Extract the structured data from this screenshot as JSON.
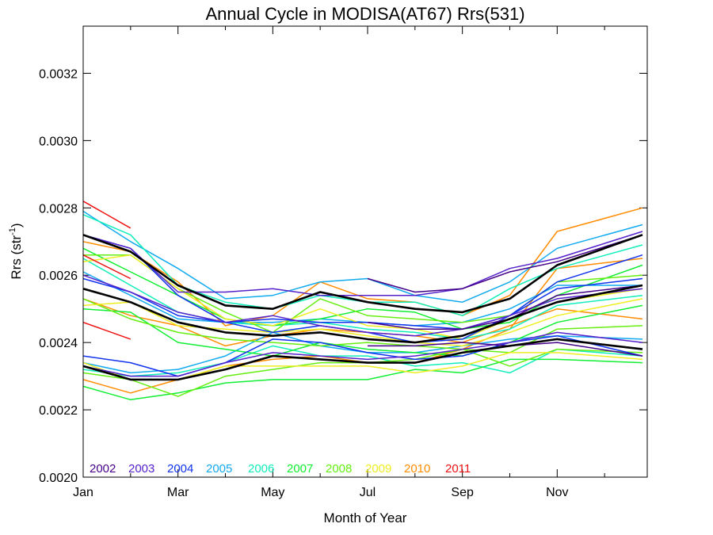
{
  "chart_data": {
    "type": "line",
    "title": "Annual Cycle in MODISA(AT67) Rrs(531)",
    "xlabel": "Month of Year",
    "ylabel_base": "Rrs (str",
    "ylabel_exp": "-1",
    "ylabel_tail": ")",
    "xlim": [
      1,
      12.9
    ],
    "ylim": [
      0.002,
      0.00334
    ],
    "x_ticks": [
      {
        "value": 1,
        "label": "Jan"
      },
      {
        "value": 3,
        "label": "Mar"
      },
      {
        "value": 5,
        "label": "May"
      },
      {
        "value": 7,
        "label": "Jul"
      },
      {
        "value": 9,
        "label": "Sep"
      },
      {
        "value": 11,
        "label": "Nov"
      }
    ],
    "y_ticks": [
      {
        "value": 0.002,
        "label": "0.0020"
      },
      {
        "value": 0.0022,
        "label": "0.0022"
      },
      {
        "value": 0.0024,
        "label": "0.0024"
      },
      {
        "value": 0.0026,
        "label": "0.0026"
      },
      {
        "value": 0.0028,
        "label": "0.0028"
      },
      {
        "value": 0.003,
        "label": "0.0030"
      },
      {
        "value": 0.0032,
        "label": "0.0032"
      }
    ],
    "grid": false,
    "legend": {
      "placement": "bottom-left",
      "entries": [
        {
          "label": "2002",
          "color": "#440088"
        },
        {
          "label": "2003",
          "color": "#5522cc"
        },
        {
          "label": "2004",
          "color": "#1133ee"
        },
        {
          "label": "2005",
          "color": "#11aaee"
        },
        {
          "label": "2006",
          "color": "#11eebb"
        },
        {
          "label": "2007",
          "color": "#11ee33"
        },
        {
          "label": "2008",
          "color": "#66ee11"
        },
        {
          "label": "2009",
          "color": "#eeee22"
        },
        {
          "label": "2010",
          "color": "#ff8c00"
        },
        {
          "label": "2011",
          "color": "#ee1111"
        }
      ]
    },
    "series": [
      {
        "color": "#ff8c00",
        "x": [
          1,
          2,
          3,
          4,
          5,
          6,
          7,
          8,
          9,
          10,
          11,
          12.8
        ],
        "y": [
          0.0027,
          0.00267,
          0.00258,
          0.00245,
          0.00248,
          0.00258,
          0.00253,
          0.00252,
          0.00248,
          0.00254,
          0.00273,
          0.0028
        ]
      },
      {
        "color": "#ff8c00",
        "x": [
          1,
          2,
          3,
          4,
          5,
          6,
          7,
          8,
          9,
          10,
          11,
          12.8
        ],
        "y": [
          0.00253,
          0.00248,
          0.00245,
          0.00239,
          0.00242,
          0.00244,
          0.00243,
          0.00242,
          0.0024,
          0.00245,
          0.0025,
          0.00247
        ]
      },
      {
        "color": "#ff8c00",
        "x": [
          1,
          2,
          3,
          4,
          5,
          6,
          7,
          8,
          9,
          10,
          11,
          12.8
        ],
        "y": [
          0.00229,
          0.00225,
          0.00229,
          0.00233,
          0.00235,
          0.00236,
          0.00234,
          0.00234,
          0.00238,
          0.00244,
          0.00262,
          0.00265
        ]
      },
      {
        "color": "#11aaee",
        "x": [
          1,
          2,
          3,
          4,
          5,
          6,
          7,
          8,
          9,
          10,
          11,
          12.8
        ],
        "y": [
          0.00279,
          0.0027,
          0.00262,
          0.00253,
          0.00254,
          0.00258,
          0.00259,
          0.00254,
          0.00252,
          0.00258,
          0.00268,
          0.00275
        ]
      },
      {
        "color": "#11aaee",
        "x": [
          1,
          2,
          3,
          4,
          5,
          6,
          7,
          8,
          9,
          10,
          11,
          12.8
        ],
        "y": [
          0.00261,
          0.00254,
          0.00247,
          0.00246,
          0.00246,
          0.00247,
          0.00246,
          0.00245,
          0.00246,
          0.0025,
          0.00257,
          0.00257
        ]
      },
      {
        "color": "#11aaee",
        "x": [
          1,
          2,
          3,
          4,
          5,
          6,
          7,
          8,
          9,
          10,
          11,
          12.8
        ],
        "y": [
          0.00234,
          0.00231,
          0.00232,
          0.00236,
          0.00243,
          0.00239,
          0.00237,
          0.00237,
          0.00239,
          0.00241,
          0.00242,
          0.00241
        ]
      },
      {
        "color": "#11eebb",
        "x": [
          1,
          2,
          3,
          4,
          5,
          6,
          7,
          8,
          9,
          10,
          11,
          12.8
        ],
        "y": [
          0.00278,
          0.00272,
          0.00257,
          0.00252,
          0.0025,
          0.00254,
          0.00252,
          0.00252,
          0.00248,
          0.00256,
          0.00262,
          0.00269
        ]
      },
      {
        "color": "#11eebb",
        "x": [
          1,
          2,
          3,
          4,
          5,
          6,
          7,
          8,
          9,
          10,
          11,
          12.8
        ],
        "y": [
          0.00265,
          0.00257,
          0.00249,
          0.00246,
          0.00245,
          0.00246,
          0.00244,
          0.00243,
          0.00241,
          0.00244,
          0.00251,
          0.00254
        ]
      },
      {
        "color": "#11eebb",
        "x": [
          1,
          2,
          3,
          4,
          5,
          6,
          7,
          8,
          9,
          10,
          11,
          12.8
        ],
        "y": [
          0.00232,
          0.0023,
          0.00231,
          0.00234,
          0.00239,
          0.00236,
          0.00236,
          0.00233,
          0.00234,
          0.00231,
          0.00238,
          0.00236
        ]
      },
      {
        "color": "#11ee33",
        "x": [
          1,
          2,
          3,
          4,
          5,
          6,
          7,
          8,
          9,
          10,
          11,
          12.8
        ],
        "y": [
          0.00268,
          0.00261,
          0.00254,
          0.00247,
          0.00245,
          0.00247,
          0.0025,
          0.00249,
          0.00244,
          0.00246,
          0.00254,
          0.00263
        ]
      },
      {
        "color": "#11ee33",
        "x": [
          1,
          2,
          3,
          4,
          5,
          6,
          7,
          8,
          9,
          10,
          11,
          12.8
        ],
        "y": [
          0.0025,
          0.00249,
          0.0024,
          0.00238,
          0.00236,
          0.0024,
          0.00238,
          0.00237,
          0.00236,
          0.0024,
          0.00246,
          0.00251
        ]
      },
      {
        "color": "#11ee33",
        "x": [
          1,
          2,
          3,
          4,
          5,
          6,
          7,
          8,
          9,
          10,
          11,
          12.8
        ],
        "y": [
          0.00227,
          0.00223,
          0.00225,
          0.00228,
          0.00229,
          0.00229,
          0.00229,
          0.00232,
          0.00231,
          0.00235,
          0.00235,
          0.00234
        ]
      },
      {
        "color": "#66ee11",
        "x": [
          1,
          2,
          3,
          4,
          5,
          6,
          7,
          8,
          9,
          10,
          11,
          12.8
        ],
        "y": [
          0.00266,
          0.00266,
          0.00256,
          0.00249,
          0.00243,
          0.00253,
          0.00248,
          0.00247,
          0.00246,
          0.00248,
          0.00258,
          0.0026
        ]
      },
      {
        "color": "#66ee11",
        "x": [
          1,
          2,
          3,
          4,
          5,
          6,
          7,
          8,
          9,
          10,
          11,
          12.8
        ],
        "y": [
          0.00253,
          0.00247,
          0.00243,
          0.00241,
          0.0024,
          0.00239,
          0.0024,
          0.00239,
          0.00238,
          0.00237,
          0.00244,
          0.00245
        ]
      },
      {
        "color": "#66ee11",
        "x": [
          1,
          2,
          3,
          4,
          5,
          6,
          7,
          8,
          9,
          10,
          11,
          12.8
        ],
        "y": [
          0.00231,
          0.00229,
          0.00224,
          0.0023,
          0.00232,
          0.00234,
          0.00234,
          0.00235,
          0.00238,
          0.00233,
          0.00238,
          0.00237
        ]
      },
      {
        "color": "#eeee22",
        "x": [
          1,
          2,
          3,
          4,
          5,
          6,
          7,
          8,
          9,
          10,
          11,
          12.8
        ],
        "y": [
          0.00264,
          0.00266,
          0.00256,
          0.00247,
          0.00245,
          0.0025,
          0.00245,
          0.00244,
          0.00241,
          0.00247,
          0.00252,
          0.00256
        ]
      },
      {
        "color": "#eeee22",
        "x": [
          1,
          2,
          3,
          4,
          5,
          6,
          7,
          8,
          9,
          10,
          11,
          12.8
        ],
        "y": [
          0.00251,
          0.00252,
          0.00245,
          0.00244,
          0.00243,
          0.00244,
          0.00242,
          0.0024,
          0.00239,
          0.00243,
          0.00248,
          0.00253
        ]
      },
      {
        "color": "#eeee22",
        "x": [
          1,
          2,
          3,
          4,
          5,
          6,
          7,
          8,
          9,
          10,
          11,
          12.8
        ],
        "y": [
          0.00234,
          0.00229,
          0.00229,
          0.00233,
          0.00233,
          0.00233,
          0.00233,
          0.00231,
          0.00233,
          0.00237,
          0.00237,
          0.00235
        ]
      },
      {
        "color": "#1133ee",
        "x": [
          1,
          2,
          3,
          4,
          5,
          6,
          7,
          8,
          9,
          10,
          11,
          12.8
        ],
        "y": [
          0.00272,
          0.00268,
          0.00254,
          0.00246,
          0.00243,
          0.00245,
          0.00243,
          0.0024,
          0.00241,
          0.00248,
          0.00258,
          0.00266
        ]
      },
      {
        "color": "#1133ee",
        "x": [
          1,
          2,
          3,
          4,
          5,
          6,
          7,
          8,
          9,
          10,
          11,
          12.8
        ],
        "y": [
          0.00259,
          0.00255,
          0.00248,
          0.00246,
          0.00247,
          0.00246,
          0.00246,
          0.00245,
          0.00244,
          0.00248,
          0.00256,
          0.00259
        ]
      },
      {
        "color": "#1133ee",
        "x": [
          1,
          2,
          3,
          4,
          5,
          6,
          7,
          8,
          9,
          10,
          11,
          12.8
        ],
        "y": [
          0.00236,
          0.00234,
          0.0023,
          0.00234,
          0.00241,
          0.0024,
          0.00237,
          0.00235,
          0.00236,
          0.0024,
          0.00242,
          0.00236
        ]
      },
      {
        "color": "#5522cc",
        "x": [
          1,
          2,
          3,
          4,
          5,
          6,
          7,
          8,
          9,
          10,
          11,
          12.8
        ],
        "y": [
          0.00272,
          0.00268,
          0.00255,
          0.00255,
          0.00256,
          0.00254,
          0.00254,
          0.00254,
          0.00256,
          0.00262,
          0.00265,
          0.00273
        ]
      },
      {
        "color": "#5522cc",
        "x": [
          1,
          2,
          3,
          4,
          5,
          6,
          7,
          8,
          9,
          10,
          11,
          12.8
        ],
        "y": [
          0.0026,
          0.00255,
          0.00249,
          0.00246,
          0.00248,
          0.00245,
          0.00243,
          0.00242,
          0.00244,
          0.00248,
          0.00253,
          0.00256
        ]
      },
      {
        "color": "#5522cc",
        "x": [
          1,
          2,
          3,
          4,
          5,
          6,
          7,
          8,
          9,
          10,
          11,
          12.8
        ],
        "y": [
          0.00233,
          0.0023,
          0.0023,
          0.00234,
          0.00237,
          0.00236,
          0.00235,
          0.00236,
          0.00238,
          0.0024,
          0.00243,
          0.0024
        ]
      },
      {
        "color": "#440088",
        "x": [
          7,
          8,
          9,
          10,
          11,
          12.8
        ],
        "y": [
          0.00259,
          0.00255,
          0.00256,
          0.00261,
          0.00264,
          0.00272
        ]
      },
      {
        "color": "#440088",
        "x": [
          7,
          8,
          9,
          10,
          11,
          12.8
        ],
        "y": [
          0.00246,
          0.00244,
          0.00244,
          0.00247,
          0.00254,
          0.00257
        ]
      },
      {
        "color": "#440088",
        "x": [
          7,
          8,
          9,
          10,
          11,
          12.8
        ],
        "y": [
          0.00239,
          0.00239,
          0.0024,
          0.00239,
          0.0024,
          0.00236
        ]
      },
      {
        "color": "#ee1111",
        "x": [
          1,
          2
        ],
        "y": [
          0.00282,
          0.00274
        ]
      },
      {
        "color": "#ee1111",
        "x": [
          1,
          2
        ],
        "y": [
          0.00266,
          0.00259
        ]
      },
      {
        "color": "#ee1111",
        "x": [
          1,
          2
        ],
        "y": [
          0.00246,
          0.00241
        ]
      },
      {
        "color": "#000000",
        "mean": true,
        "x": [
          1,
          2,
          3,
          4,
          5,
          6,
          7,
          8,
          9,
          10,
          11,
          12.8
        ],
        "y": [
          0.00272,
          0.00267,
          0.00257,
          0.00251,
          0.0025,
          0.00255,
          0.00252,
          0.0025,
          0.00249,
          0.00253,
          0.00263,
          0.00272
        ]
      },
      {
        "color": "#000000",
        "mean": true,
        "x": [
          1,
          2,
          3,
          4,
          5,
          6,
          7,
          8,
          9,
          10,
          11,
          12.8
        ],
        "y": [
          0.00256,
          0.00252,
          0.00246,
          0.00243,
          0.00242,
          0.00243,
          0.00241,
          0.0024,
          0.00242,
          0.00247,
          0.00252,
          0.00257
        ]
      },
      {
        "color": "#000000",
        "mean": true,
        "x": [
          1,
          2,
          3,
          4,
          5,
          6,
          7,
          8,
          9,
          10,
          11,
          12.8
        ],
        "y": [
          0.00233,
          0.00229,
          0.00229,
          0.00232,
          0.00236,
          0.00235,
          0.00234,
          0.00234,
          0.00237,
          0.00239,
          0.00241,
          0.00238
        ]
      }
    ]
  }
}
